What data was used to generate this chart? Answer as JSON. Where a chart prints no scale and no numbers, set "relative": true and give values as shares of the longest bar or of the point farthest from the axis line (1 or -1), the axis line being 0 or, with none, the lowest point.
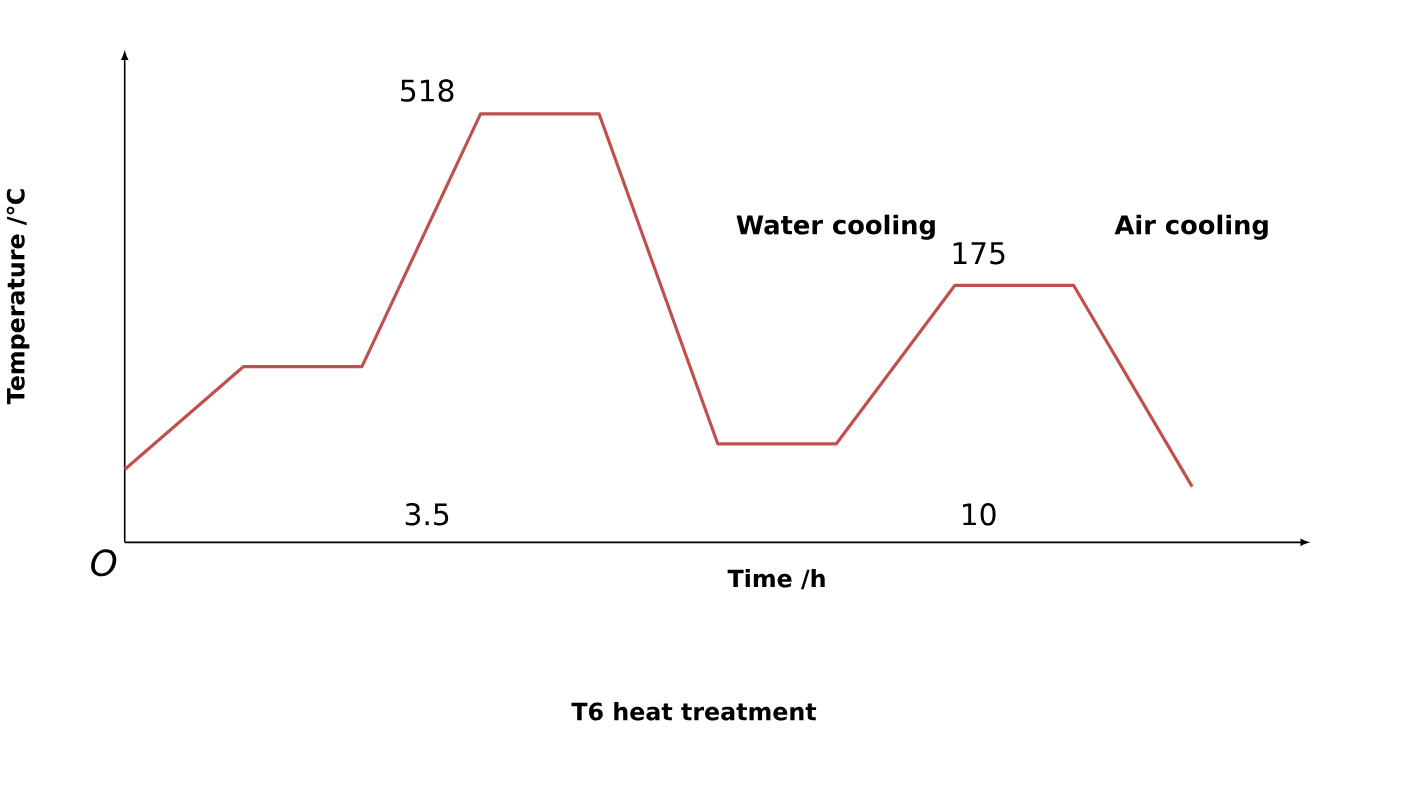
{
  "chart_data": {
    "type": "line",
    "relative": true,
    "title": "T6 heat treatment",
    "xlabel": "Time /h",
    "ylabel": "Temperature /℃",
    "categories": [
      null,
      null,
      null,
      null,
      null,
      null,
      null,
      null,
      null,
      null
    ],
    "series": [
      {
        "color": "#c0504d",
        "values": [
          0.17,
          0.41,
          0.41,
          1,
          1,
          0.23,
          0.23,
          0.6,
          0.6,
          0.13
        ]
      }
    ],
    "annotations": [
      "518",
      "175",
      "3.5",
      "10",
      "Water cooling",
      "Air cooling",
      "O"
    ]
  }
}
